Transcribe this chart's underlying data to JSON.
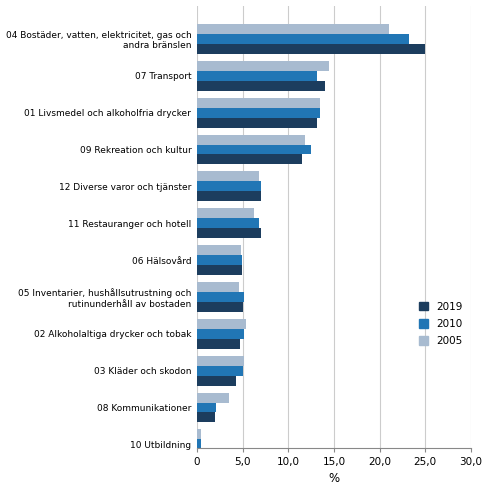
{
  "categories": [
    "04 Bostäder, vatten, elektricitet, gas och\nandra bränslen",
    "07 Transport",
    "01 Livsmedel och alkoholfria drycker",
    "09 Rekreation och kultur",
    "12 Diverse varor och tjänster",
    "11 Restauranger och hotell",
    "06 Hälsovård",
    "05 Inventarier, hushållsutrustning och\nrutinunderhåll av bostaden",
    "02 Alkoholaltiga drycker och tobak",
    "03 Kläder och skodon",
    "08 Kommunikationer",
    "10 Utbildning"
  ],
  "values_2019": [
    25.0,
    14.0,
    13.2,
    11.5,
    7.0,
    7.0,
    4.9,
    5.0,
    4.7,
    4.3,
    2.0,
    0.4
  ],
  "values_2010": [
    23.2,
    13.2,
    13.5,
    12.5,
    7.0,
    6.8,
    4.9,
    5.2,
    5.2,
    5.1,
    2.1,
    0.4
  ],
  "values_2005": [
    21.0,
    14.5,
    13.5,
    11.8,
    6.8,
    6.3,
    4.8,
    4.6,
    5.4,
    5.2,
    3.5,
    0.4
  ],
  "color_2019": "#1c3d5e",
  "color_2010": "#2176b5",
  "color_2005": "#a8bbd0",
  "xlabel": "%",
  "xlim": [
    0,
    30
  ],
  "xticks": [
    0,
    5,
    10,
    15,
    20,
    25,
    30
  ],
  "xtick_labels": [
    "0",
    "5,0",
    "10,0",
    "15,0",
    "20,0",
    "25,0",
    "30,0"
  ],
  "bar_height": 0.27,
  "background_color": "#ffffff",
  "grid_color": "#cccccc"
}
